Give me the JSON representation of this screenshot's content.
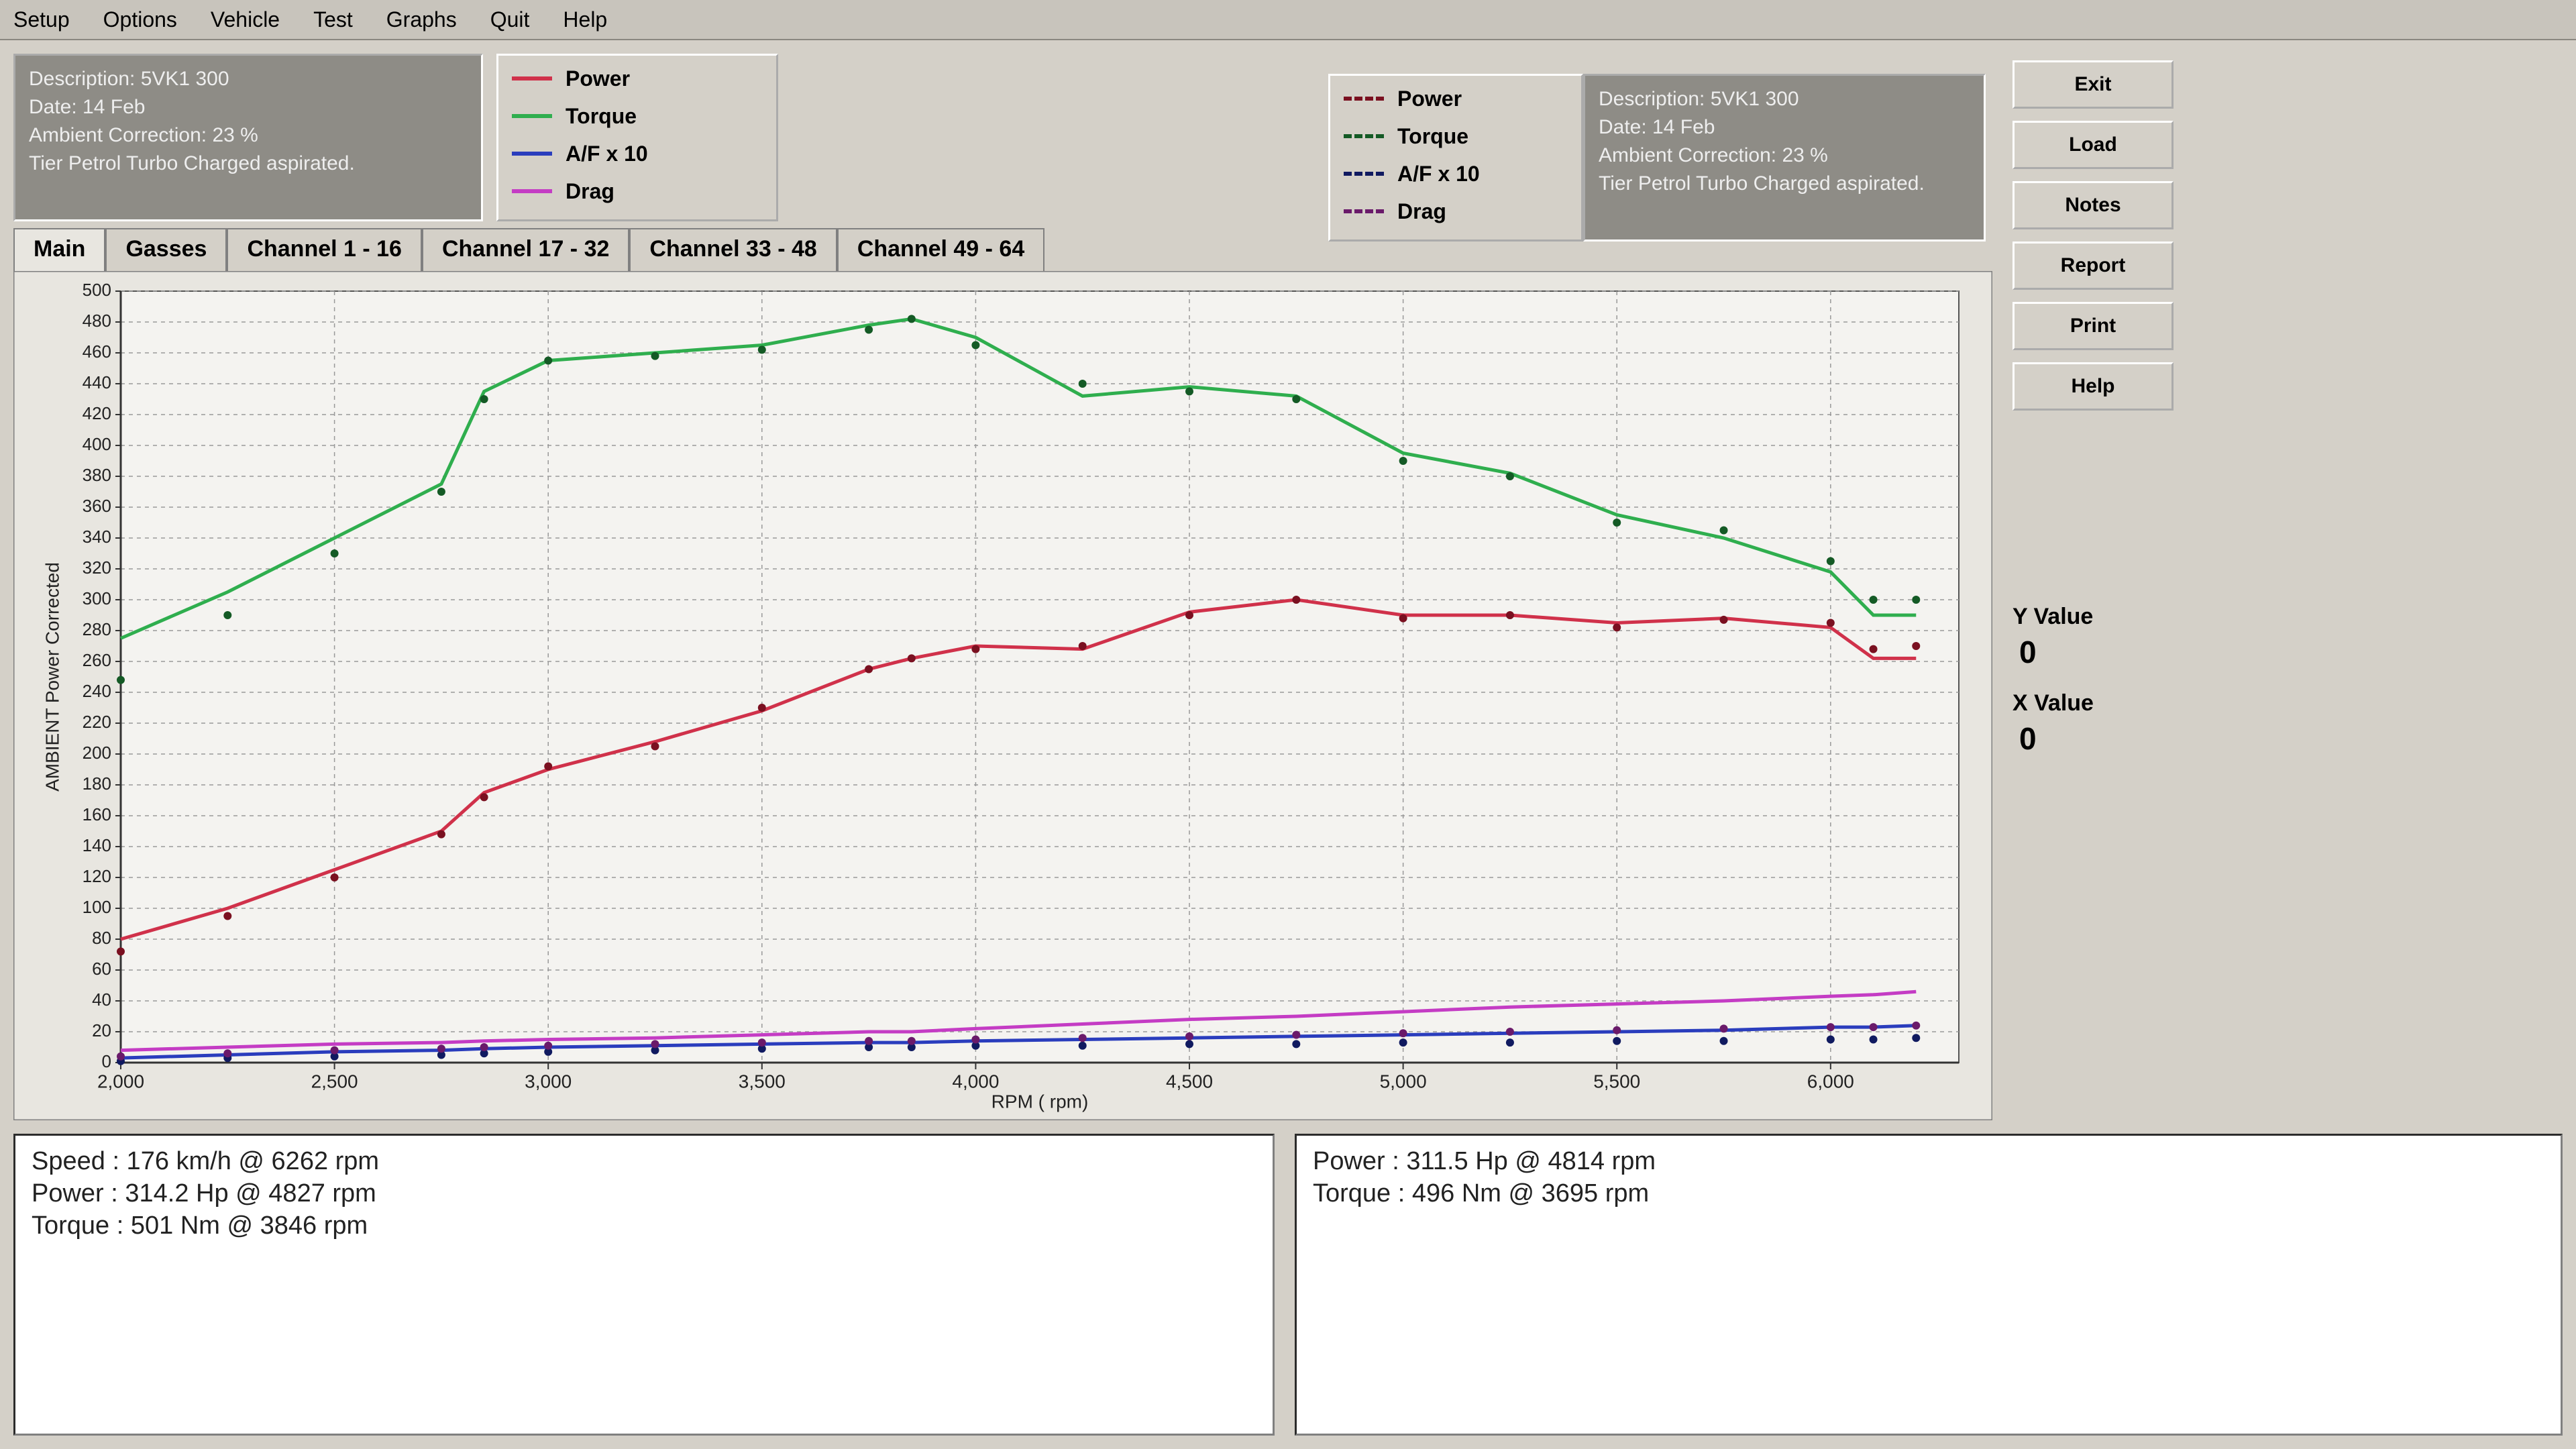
{
  "menu": [
    "Setup",
    "Options",
    "Vehicle",
    "Test",
    "Graphs",
    "Quit",
    "Help"
  ],
  "info_left": [
    "Description: 5VK1 300",
    "Date: 14 Feb",
    "Ambient Correction: 23 %",
    "Tier Petrol Turbo Charged aspirated."
  ],
  "info_right": [
    "Description: 5VK1 300",
    "Date: 14 Feb",
    "Ambient Correction: 23 %",
    "Tier Petrol Turbo Charged aspirated."
  ],
  "tabs": [
    "Main",
    "Gasses",
    "Channel 1 - 16",
    "Channel 17 - 32",
    "Channel 33 - 48",
    "Channel 49 - 64"
  ],
  "buttons": [
    "Exit",
    "Load",
    "Notes",
    "Report",
    "Print",
    "Help"
  ],
  "cursor": {
    "y_label": "Y Value",
    "y_value": 0,
    "x_label": "X Value",
    "x_value": 0
  },
  "results_left": [
    "Speed : 176 km/h @ 6262 rpm",
    "Power : 314.2 Hp @ 4827 rpm",
    "Torque : 501 Nm @ 3846 rpm"
  ],
  "results_right": [
    "Power : 311.5 Hp @ 4814 rpm",
    "Torque : 496 Nm @ 3695 rpm"
  ],
  "chart_data": {
    "type": "line",
    "y_label": "AMBIENT Power Corrected",
    "x_label": "RPM ( rpm)",
    "x": [
      2000,
      2250,
      2500,
      2750,
      2850,
      3000,
      3250,
      3500,
      3750,
      3850,
      4000,
      4250,
      4500,
      4750,
      5000,
      5250,
      5500,
      5750,
      6000,
      6100,
      6200
    ],
    "xlim": [
      2000,
      6300
    ],
    "xticks": [
      {
        "value": 2000,
        "label": "2,000"
      },
      {
        "value": 2500,
        "label": "2,500"
      },
      {
        "value": 3000,
        "label": "3,000"
      },
      {
        "value": 3500,
        "label": "3,500"
      },
      {
        "value": 4000,
        "label": "4,000"
      },
      {
        "value": 4500,
        "label": "4,500"
      },
      {
        "value": 5000,
        "label": "5,000"
      },
      {
        "value": 5500,
        "label": "5,500"
      },
      {
        "value": 6000,
        "label": "6,000"
      }
    ],
    "ylim": [
      0,
      500
    ],
    "yticks": [
      0,
      20,
      40,
      60,
      80,
      100,
      120,
      140,
      160,
      180,
      200,
      220,
      240,
      260,
      280,
      300,
      320,
      340,
      360,
      380,
      400,
      420,
      440,
      460,
      480,
      500
    ],
    "grid": true,
    "series": [
      {
        "name": "Power",
        "color": "#d0314a",
        "style": "solid",
        "values": [
          80,
          100,
          125,
          150,
          175,
          190,
          208,
          228,
          255,
          262,
          270,
          268,
          292,
          300,
          290,
          290,
          285,
          288,
          282,
          262,
          262
        ]
      },
      {
        "name": "Torque",
        "color": "#2fae4e",
        "style": "solid",
        "values": [
          275,
          305,
          340,
          375,
          435,
          455,
          460,
          465,
          478,
          482,
          470,
          432,
          438,
          432,
          395,
          382,
          355,
          340,
          318,
          290,
          290
        ]
      },
      {
        "name": "A/F x 10",
        "color": "#2a3dbd",
        "style": "solid",
        "values": [
          3,
          5,
          7,
          8,
          9,
          10,
          11,
          12,
          13,
          13,
          14,
          15,
          16,
          17,
          18,
          19,
          20,
          21,
          23,
          23,
          24
        ]
      },
      {
        "name": "Drag",
        "color": "#c43cc4",
        "style": "solid",
        "values": [
          8,
          10,
          12,
          13,
          14,
          15,
          16,
          18,
          20,
          20,
          22,
          25,
          28,
          30,
          33,
          36,
          38,
          40,
          43,
          44,
          46
        ]
      },
      {
        "name": "Power",
        "color": "#7a1020",
        "style": "dotted",
        "values": [
          72,
          95,
          120,
          148,
          172,
          192,
          205,
          230,
          255,
          262,
          268,
          270,
          290,
          300,
          288,
          290,
          282,
          287,
          285,
          268,
          270
        ]
      },
      {
        "name": "Torque",
        "color": "#145a25",
        "style": "dotted",
        "values": [
          248,
          290,
          330,
          370,
          430,
          455,
          458,
          462,
          475,
          482,
          465,
          440,
          435,
          430,
          390,
          380,
          350,
          345,
          325,
          300,
          300
        ]
      },
      {
        "name": "A/F x 10",
        "color": "#101a60",
        "style": "dotted",
        "values": [
          1,
          3,
          4,
          5,
          6,
          7,
          8,
          9,
          10,
          10,
          11,
          11,
          12,
          12,
          13,
          13,
          14,
          14,
          15,
          15,
          16
        ]
      },
      {
        "name": "Drag",
        "color": "#6a1a6a",
        "style": "dotted",
        "values": [
          4,
          6,
          8,
          9,
          10,
          11,
          12,
          13,
          14,
          14,
          15,
          16,
          17,
          18,
          19,
          20,
          21,
          22,
          23,
          23,
          24
        ]
      }
    ]
  }
}
